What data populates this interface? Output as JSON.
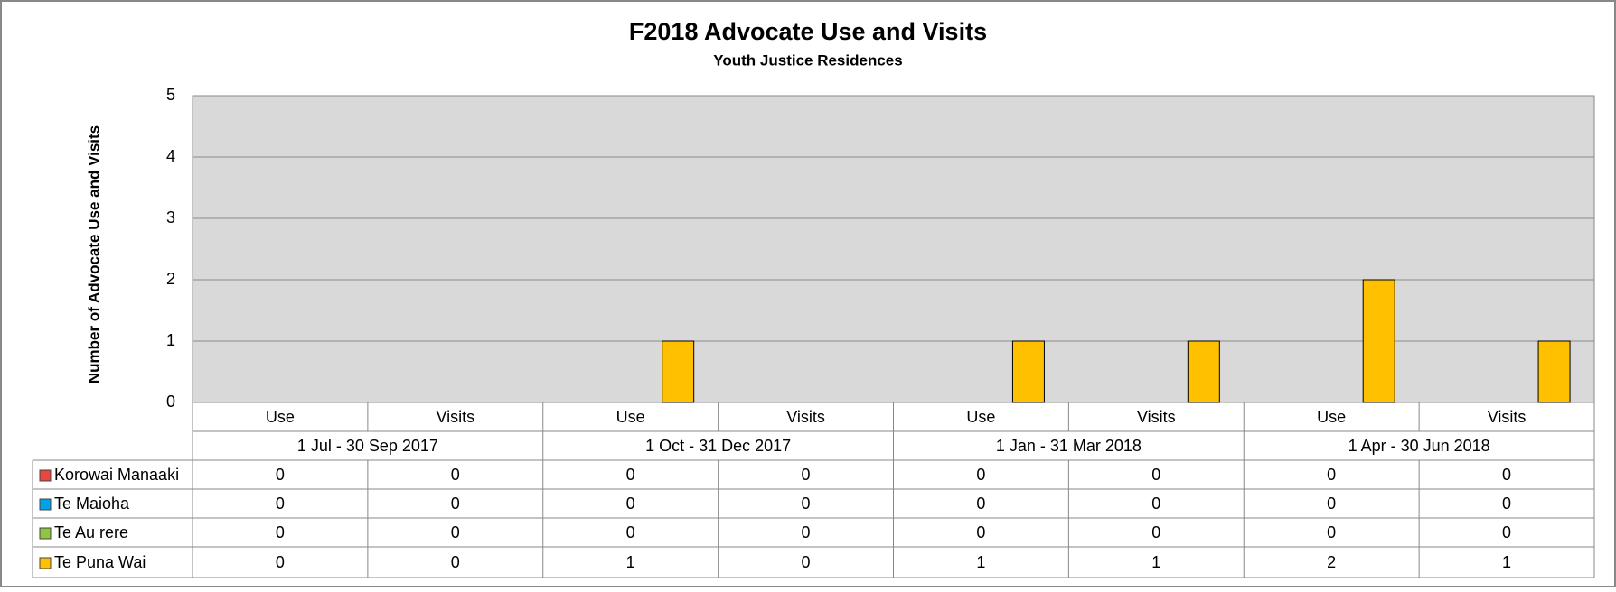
{
  "chart_data": {
    "type": "bar",
    "title": "F2018 Advocate Use and Visits",
    "subtitle": "Youth Justice Residences",
    "y_label": "Number of Advocate Use and Visits",
    "categories": [
      "Use",
      "Visits",
      "Use",
      "Visits",
      "Use",
      "Visits",
      "Use",
      "Visits"
    ],
    "category_groups": [
      "1 Jul - 30 Sep 2017",
      "1 Oct - 31 Dec 2017",
      "1 Jan - 31 Mar 2018",
      "1 Apr - 30 Jun 2018"
    ],
    "series": [
      {
        "name": "Korowai Manaaki",
        "color": "#e8473f",
        "values": [
          0,
          0,
          0,
          0,
          0,
          0,
          0,
          0
        ]
      },
      {
        "name": "Te Maioha",
        "color": "#00a2e8",
        "values": [
          0,
          0,
          0,
          0,
          0,
          0,
          0,
          0
        ]
      },
      {
        "name": "Te Au rere",
        "color": "#8dc63f",
        "values": [
          0,
          0,
          0,
          0,
          0,
          0,
          0,
          0
        ]
      },
      {
        "name": "Te Puna Wai",
        "color": "#ffc000",
        "values": [
          0,
          0,
          1,
          0,
          1,
          1,
          2,
          1
        ]
      }
    ],
    "ylim": [
      0,
      5
    ],
    "yticks": [
      0,
      1,
      2,
      3,
      4,
      5
    ],
    "grid": true,
    "data_table": true
  }
}
